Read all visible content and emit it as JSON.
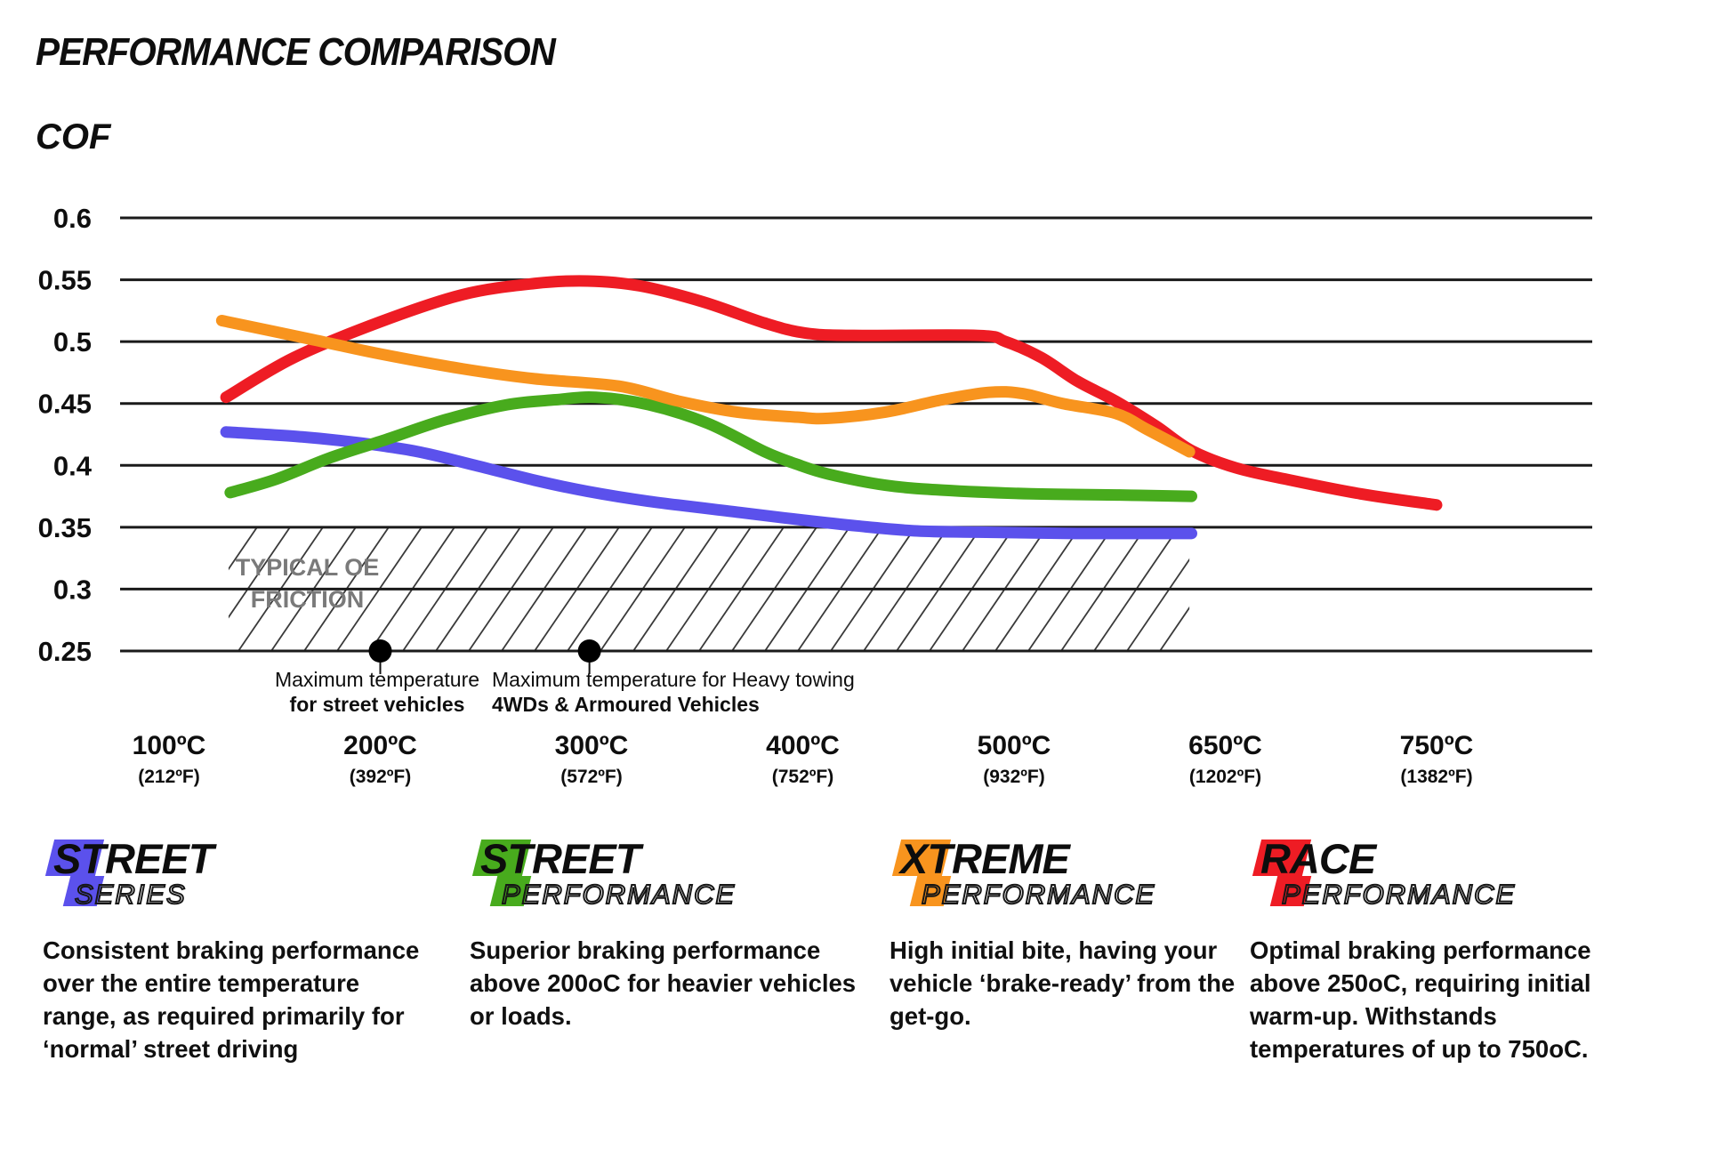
{
  "title": "PERFORMANCE COMPARISON",
  "ylabel": "COF",
  "chart_data": {
    "type": "line",
    "title": "PERFORMANCE COMPARISON",
    "ylabel": "COF",
    "grid": "horizontal",
    "ylim": [
      0.25,
      0.6
    ],
    "y_ticks": [
      "0.6",
      "0.55",
      "0.5",
      "0.45",
      "0.4",
      "0.35",
      "0.3",
      "0.25"
    ],
    "y_tick_values": [
      0.6,
      0.55,
      0.5,
      0.45,
      0.4,
      0.35,
      0.3,
      0.25
    ],
    "x_ticks": [
      {
        "t": 0,
        "c": "100ºC",
        "f": "(212ºF)"
      },
      {
        "t": 1,
        "c": "200ºC",
        "f": "(392ºF)"
      },
      {
        "t": 2,
        "c": "300ºC",
        "f": "(572ºF)"
      },
      {
        "t": 3,
        "c": "400ºC",
        "f": "(752ºF)"
      },
      {
        "t": 4,
        "c": "500ºC",
        "f": "(932ºF)"
      },
      {
        "t": 5,
        "c": "650ºC",
        "f": "(1202ºF)"
      },
      {
        "t": 6,
        "c": "750ºC",
        "f": "(1382ºF)"
      }
    ],
    "series": [
      {
        "id": "street-series",
        "name": "Street Series",
        "color": "#5B51EC",
        "points": [
          [
            0.27,
            0.427
          ],
          [
            0.63,
            0.423
          ],
          [
            0.91,
            0.418
          ],
          [
            1.18,
            0.411
          ],
          [
            1.45,
            0.4
          ],
          [
            1.73,
            0.388
          ],
          [
            1.98,
            0.379
          ],
          [
            2.27,
            0.371
          ],
          [
            2.7,
            0.362
          ],
          [
            2.99,
            0.356
          ],
          [
            3.26,
            0.351
          ],
          [
            3.54,
            0.347
          ],
          [
            3.83,
            0.346
          ],
          [
            4.3,
            0.345
          ],
          [
            4.84,
            0.345
          ]
        ]
      },
      {
        "id": "street-performance",
        "name": "Street Performance",
        "color": "#48AB1D",
        "points": [
          [
            0.29,
            0.378
          ],
          [
            0.51,
            0.389
          ],
          [
            0.76,
            0.406
          ],
          [
            1.03,
            0.421
          ],
          [
            1.31,
            0.437
          ],
          [
            1.6,
            0.449
          ],
          [
            1.83,
            0.453
          ],
          [
            2.02,
            0.455
          ],
          [
            2.27,
            0.449
          ],
          [
            2.55,
            0.434
          ],
          [
            2.82,
            0.411
          ],
          [
            2.97,
            0.401
          ],
          [
            3.12,
            0.393
          ],
          [
            3.39,
            0.384
          ],
          [
            3.66,
            0.38
          ],
          [
            4.08,
            0.377
          ],
          [
            4.5,
            0.376
          ],
          [
            4.84,
            0.375
          ]
        ]
      },
      {
        "id": "race-performance",
        "name": "Race Performance",
        "color": "#EE1C24",
        "points": [
          [
            0.27,
            0.455
          ],
          [
            0.59,
            0.487
          ],
          [
            1.0,
            0.516
          ],
          [
            1.39,
            0.538
          ],
          [
            1.73,
            0.547
          ],
          [
            1.98,
            0.549
          ],
          [
            2.23,
            0.545
          ],
          [
            2.53,
            0.532
          ],
          [
            2.82,
            0.515
          ],
          [
            3.01,
            0.507
          ],
          [
            3.24,
            0.505
          ],
          [
            3.83,
            0.505
          ],
          [
            3.96,
            0.5
          ],
          [
            4.13,
            0.487
          ],
          [
            4.3,
            0.468
          ],
          [
            4.48,
            0.452
          ],
          [
            4.67,
            0.432
          ],
          [
            4.84,
            0.412
          ],
          [
            5.05,
            0.398
          ],
          [
            5.31,
            0.388
          ],
          [
            5.64,
            0.377
          ],
          [
            6.0,
            0.368
          ]
        ]
      },
      {
        "id": "xtreme-performance",
        "name": "Xtreme Performance",
        "color": "#F8941E",
        "points": [
          [
            0.25,
            0.517
          ],
          [
            0.67,
            0.502
          ],
          [
            1.0,
            0.49
          ],
          [
            1.39,
            0.478
          ],
          [
            1.73,
            0.47
          ],
          [
            2.13,
            0.464
          ],
          [
            2.41,
            0.452
          ],
          [
            2.69,
            0.443
          ],
          [
            2.97,
            0.439
          ],
          [
            3.12,
            0.438
          ],
          [
            3.39,
            0.443
          ],
          [
            3.66,
            0.453
          ],
          [
            3.88,
            0.459
          ],
          [
            4.04,
            0.458
          ],
          [
            4.23,
            0.45
          ],
          [
            4.48,
            0.442
          ],
          [
            4.63,
            0.429
          ],
          [
            4.83,
            0.411
          ]
        ]
      }
    ],
    "oe_band": {
      "label_line1": "TYPICAL OE",
      "label_line2": "FRICTION",
      "cof_min": 0.25,
      "cof_max": 0.35,
      "t_start": 0.282,
      "t_end": 4.83
    },
    "markers": [
      {
        "t": 1.0,
        "cof": 0.25
      },
      {
        "t": 1.99,
        "cof": 0.25
      }
    ]
  },
  "annotations": [
    {
      "line1": "Maximum temperature",
      "line2": "for street vehicles"
    },
    {
      "line1": "Maximum temperature for Heavy towing",
      "line2": "4WDs & Armoured Vehicles"
    }
  ],
  "legend": {
    "items": [
      {
        "word1": "STREET",
        "word2": "SERIES",
        "color": "#5B51EC",
        "desc": "Consistent braking performance over the entire temperature range, as required primarily for ‘normal’ street driving"
      },
      {
        "word1": "STREET",
        "word2": "PERFORMANCE",
        "color": "#48AB1D",
        "desc": "Superior braking performance above 200oC for heavier vehicles or loads."
      },
      {
        "word1": "XTREME",
        "word2": "PERFORMANCE",
        "color": "#F8941E",
        "desc": "High initial bite, having your vehicle ‘brake-ready’ from the get-go."
      },
      {
        "word1": "RACE",
        "word2": "PERFORMANCE",
        "color": "#EE1C24",
        "desc": "Optimal braking performance above 250oC, requiring initial warm-up. Withstands temperatures of up to 750oC."
      }
    ]
  }
}
